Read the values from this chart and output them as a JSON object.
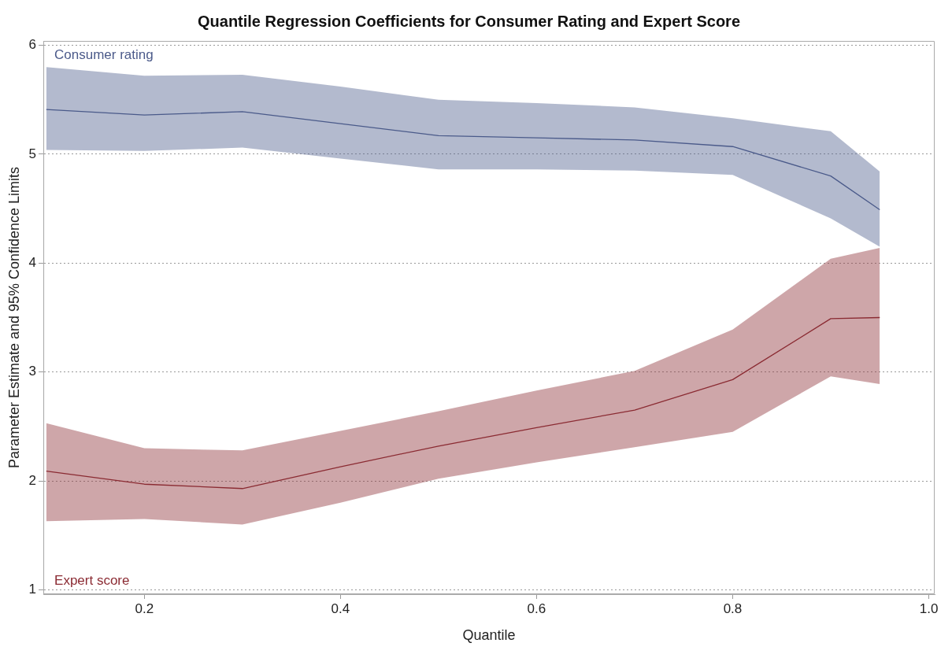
{
  "chart_data": {
    "type": "line",
    "title": "Quantile Regression Coefficients for Consumer Rating and Expert Score",
    "xlabel": "Quantile",
    "ylabel": "Parameter Estimate and 95% Confidence Limits",
    "x": [
      0.1,
      0.2,
      0.3,
      0.4,
      0.5,
      0.6,
      0.7,
      0.8,
      0.9,
      0.95
    ],
    "series": [
      {
        "name": "Consumer rating",
        "color": "#4b5a8a",
        "values": [
          5.41,
          5.36,
          5.39,
          5.28,
          5.17,
          5.15,
          5.13,
          5.07,
          4.8,
          4.49
        ],
        "lower": [
          5.04,
          5.03,
          5.06,
          4.96,
          4.86,
          4.86,
          4.85,
          4.81,
          4.41,
          4.15
        ],
        "upper": [
          5.8,
          5.72,
          5.73,
          5.62,
          5.5,
          5.47,
          5.43,
          5.33,
          5.21,
          4.84
        ]
      },
      {
        "name": "Expert score",
        "color": "#8b2b33",
        "values": [
          2.09,
          1.97,
          1.93,
          2.13,
          2.32,
          2.49,
          2.65,
          2.93,
          3.49,
          3.5
        ],
        "lower": [
          1.63,
          1.65,
          1.6,
          1.8,
          2.02,
          2.17,
          2.31,
          2.45,
          2.96,
          2.89
        ],
        "upper": [
          2.53,
          2.3,
          2.28,
          2.46,
          2.64,
          2.83,
          3.01,
          3.39,
          4.04,
          4.14
        ]
      }
    ],
    "xlim": [
      0.097,
      1.006
    ],
    "xticks": [
      0.2,
      0.4,
      0.6,
      0.8,
      {
        "value": 1,
        "label": "1.0"
      }
    ],
    "ylim": [
      0.96,
      6.04
    ],
    "yticks": [
      1,
      2,
      3,
      4,
      5,
      6
    ],
    "grid": "y",
    "legend": false,
    "marker": "none",
    "line_style": "solid"
  }
}
